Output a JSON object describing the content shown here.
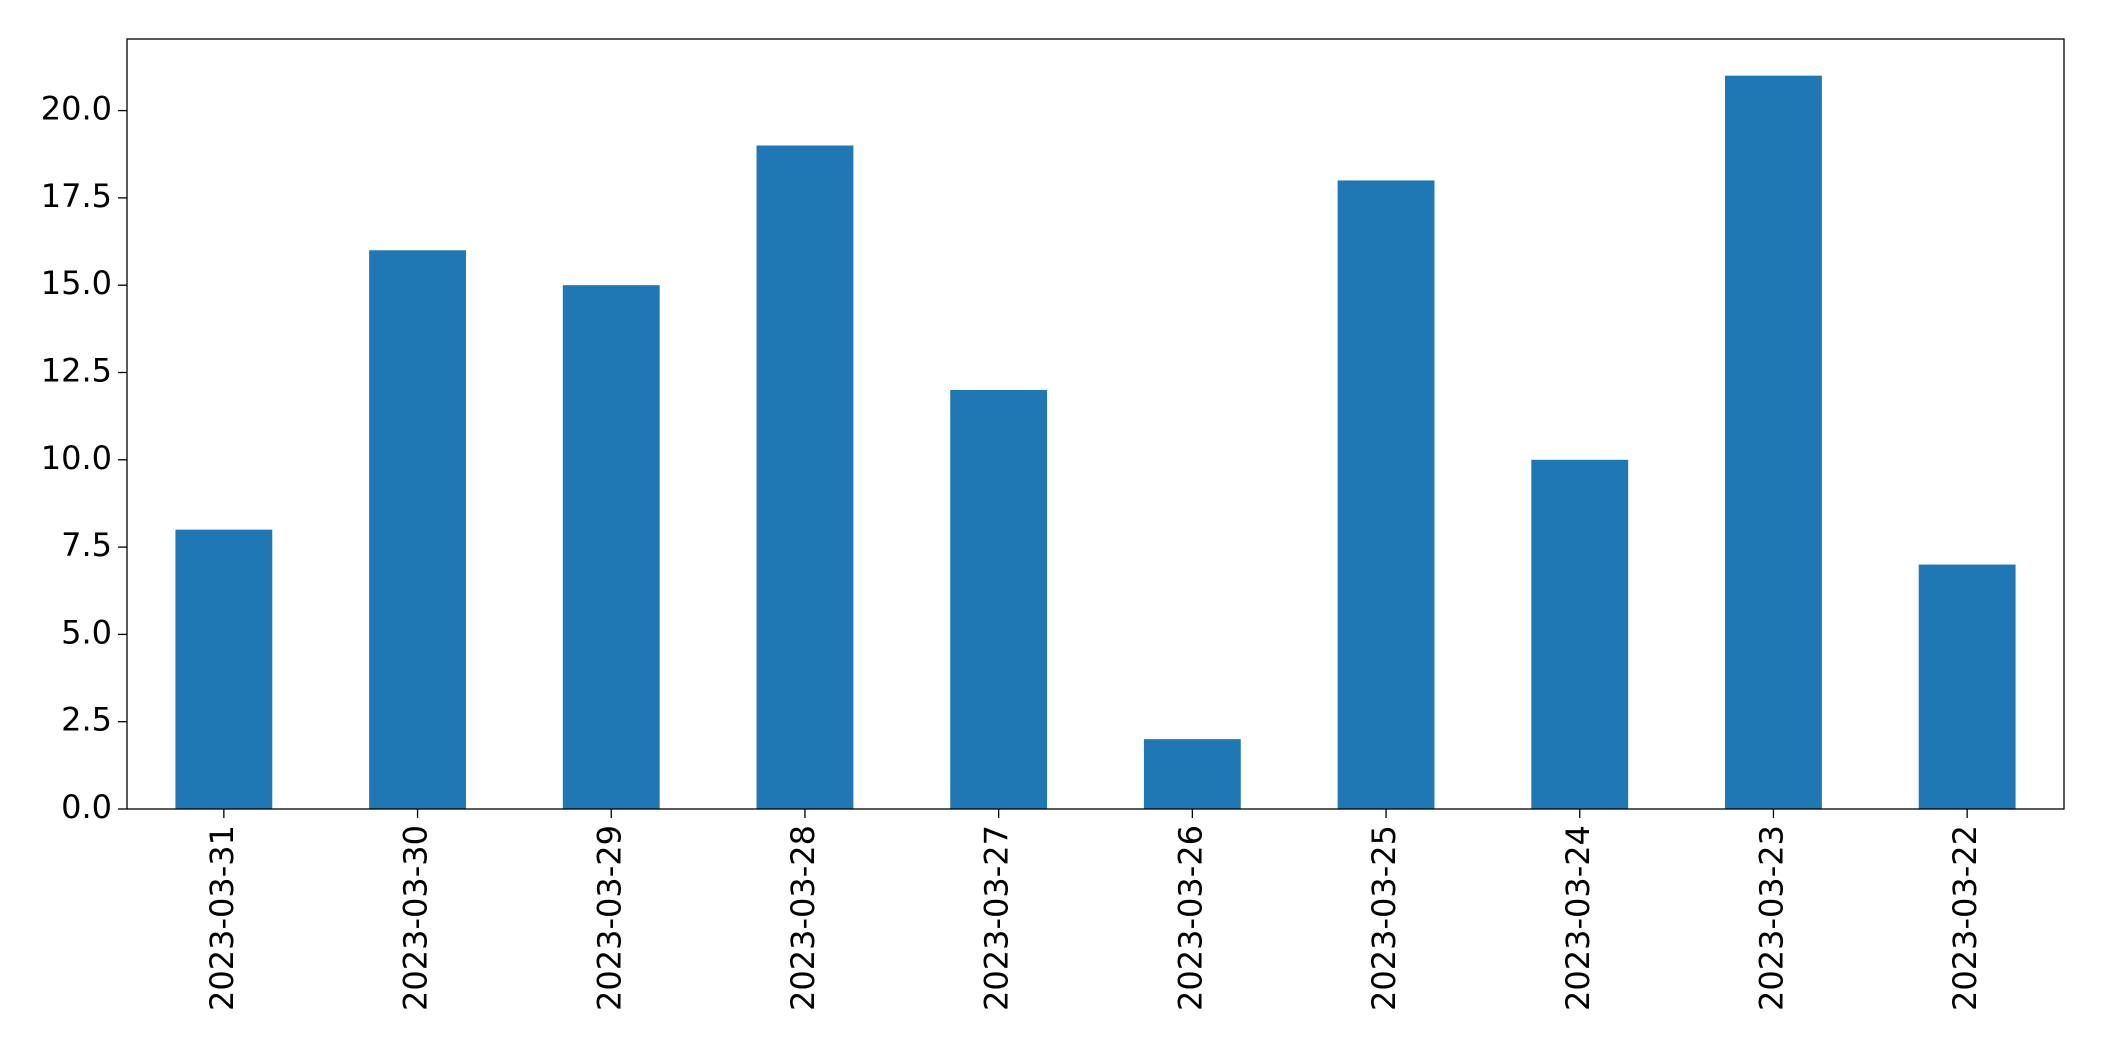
{
  "chart_data": {
    "type": "bar",
    "categories": [
      "2023-03-31",
      "2023-03-30",
      "2023-03-29",
      "2023-03-28",
      "2023-03-27",
      "2023-03-26",
      "2023-03-25",
      "2023-03-24",
      "2023-03-23",
      "2023-03-22"
    ],
    "values": [
      8,
      16,
      15,
      19,
      12,
      2,
      18,
      10,
      21,
      7
    ],
    "color": "#1f77b4",
    "ylim": [
      0,
      22.05
    ],
    "yticks": [
      {
        "value": 0,
        "label": "0.0"
      },
      2.5,
      {
        "value": 5,
        "label": "5.0"
      },
      7.5,
      {
        "value": 10,
        "label": "10.0"
      },
      12.5,
      {
        "value": 15,
        "label": "15.0"
      },
      17.5,
      {
        "value": 20,
        "label": "20.0"
      }
    ],
    "grid": false
  }
}
